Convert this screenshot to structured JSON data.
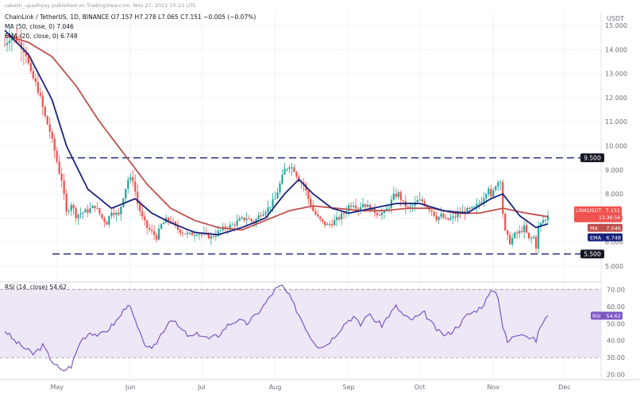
{
  "header": {
    "watermark": "rakesh_upadhyay published on TradingView.com, Nov 27, 2021 10:23 UTC",
    "symbol_line": "ChainLink / TetherUS, 1D, BINANCE  O7.157  H7.278  L7.065  C7.151  −0.005 (−0.07%)",
    "ma_line": "MA (50, close, 0)  7.046",
    "ema_line": "EMA (20, close, 0)  6.748"
  },
  "colors": {
    "up": "#26a69a",
    "down": "#ef5350",
    "ma": "#c0504d",
    "ema": "#1a237e",
    "rsi": "#7e57c2",
    "rsi_band": "#ede7f6",
    "level_line": "#1a237e",
    "grid": "#f0f3fa"
  },
  "price_axis": {
    "unit": "USDT",
    "ticks": [
      "15.000",
      "14.000",
      "13.000",
      "12.000",
      "11.000",
      "10.000",
      "9.000",
      "8.000",
      "7.000",
      "6.000",
      "5.000"
    ],
    "tick_values": [
      15,
      14,
      13,
      12,
      11,
      10,
      9,
      8,
      7,
      6,
      5
    ]
  },
  "price_labels": {
    "resistance": "9.500",
    "support": "5.500",
    "symbol": "LINKUSDT",
    "symbol_value": "7.151",
    "countdown": "13:36:54",
    "ma_tag": "MA",
    "ma_value": "7.046",
    "ema_tag": "EMA",
    "ema_value": "6.748"
  },
  "rsi_panel": {
    "title": "RSI (14, close)  54.62",
    "ticks": [
      "70.00",
      "60.00",
      "50.00",
      "40.00",
      "30.00",
      "20.00"
    ],
    "tick_values": [
      70,
      60,
      50,
      40,
      30,
      20
    ],
    "tag": "RSI",
    "value_label": "54.62"
  },
  "x_axis": {
    "labels": [
      "May",
      "Jun",
      "Jul",
      "Aug",
      "Sep",
      "Oct",
      "Nov",
      "Dec"
    ]
  },
  "chart_data": {
    "type": "candlestick",
    "title": "ChainLink / TetherUS, 1D, BINANCE",
    "ylabel": "USDT",
    "ylim": [
      4.5,
      15.6
    ],
    "levels": [
      9.5,
      5.5
    ],
    "months": [
      {
        "label": "May",
        "day": 22
      },
      {
        "label": "Jun",
        "day": 53
      },
      {
        "label": "Jul",
        "day": 83
      },
      {
        "label": "Aug",
        "day": 114
      },
      {
        "label": "Sep",
        "day": 145
      },
      {
        "label": "Oct",
        "day": 175
      },
      {
        "label": "Nov",
        "day": 206
      },
      {
        "label": "Dec",
        "day": 236
      }
    ],
    "close_anchors": [
      [
        0,
        14.2
      ],
      [
        3,
        14.6
      ],
      [
        6,
        14.3
      ],
      [
        9,
        13.8
      ],
      [
        11,
        13.0
      ],
      [
        13,
        12.6
      ],
      [
        15,
        12.0
      ],
      [
        17,
        11.2
      ],
      [
        19,
        10.6
      ],
      [
        21,
        9.8
      ],
      [
        23,
        8.9
      ],
      [
        24,
        8.6
      ],
      [
        26,
        7.2
      ],
      [
        28,
        7.6
      ],
      [
        30,
        7.1
      ],
      [
        32,
        7.2
      ],
      [
        35,
        7.3
      ],
      [
        38,
        7.5
      ],
      [
        41,
        7.0
      ],
      [
        43,
        6.8
      ],
      [
        45,
        7.3
      ],
      [
        48,
        7.1
      ],
      [
        50,
        7.9
      ],
      [
        52,
        8.6
      ],
      [
        54,
        8.6
      ],
      [
        56,
        7.6
      ],
      [
        58,
        7.0
      ],
      [
        60,
        6.6
      ],
      [
        62,
        6.4
      ],
      [
        64,
        6.2
      ],
      [
        66,
        6.7
      ],
      [
        68,
        6.9
      ],
      [
        70,
        6.9
      ],
      [
        72,
        6.6
      ],
      [
        75,
        6.4
      ],
      [
        78,
        6.3
      ],
      [
        81,
        6.4
      ],
      [
        84,
        6.3
      ],
      [
        87,
        6.2
      ],
      [
        90,
        6.4
      ],
      [
        93,
        6.6
      ],
      [
        96,
        6.7
      ],
      [
        99,
        6.9
      ],
      [
        102,
        7.0
      ],
      [
        105,
        6.8
      ],
      [
        108,
        7.2
      ],
      [
        111,
        7.4
      ],
      [
        114,
        7.8
      ],
      [
        116,
        8.4
      ],
      [
        118,
        9.0
      ],
      [
        120,
        9.2
      ],
      [
        122,
        9.0
      ],
      [
        124,
        8.6
      ],
      [
        126,
        8.4
      ],
      [
        128,
        7.8
      ],
      [
        130,
        7.3
      ],
      [
        132,
        7.0
      ],
      [
        134,
        6.8
      ],
      [
        136,
        6.7
      ],
      [
        138,
        6.8
      ],
      [
        141,
        7.0
      ],
      [
        143,
        7.2
      ],
      [
        145,
        7.5
      ],
      [
        147,
        7.6
      ],
      [
        149,
        7.4
      ],
      [
        151,
        7.6
      ],
      [
        154,
        7.4
      ],
      [
        157,
        7.2
      ],
      [
        160,
        7.2
      ],
      [
        162,
        7.5
      ],
      [
        164,
        7.9
      ],
      [
        166,
        8.0
      ],
      [
        168,
        7.6
      ],
      [
        170,
        7.4
      ],
      [
        172,
        7.5
      ],
      [
        174,
        7.7
      ],
      [
        176,
        7.7
      ],
      [
        178,
        7.5
      ],
      [
        180,
        7.3
      ],
      [
        182,
        7.0
      ],
      [
        184,
        7.1
      ],
      [
        186,
        6.9
      ],
      [
        189,
        7.0
      ],
      [
        192,
        7.2
      ],
      [
        195,
        7.3
      ],
      [
        198,
        7.4
      ],
      [
        200,
        7.6
      ],
      [
        202,
        7.9
      ],
      [
        204,
        8.3
      ],
      [
        205,
        7.8
      ],
      [
        207,
        8.4
      ],
      [
        209,
        8.6
      ],
      [
        210,
        7.2
      ],
      [
        211,
        6.4
      ],
      [
        213,
        6.0
      ],
      [
        215,
        6.3
      ],
      [
        217,
        6.4
      ],
      [
        219,
        6.6
      ],
      [
        221,
        6.1
      ],
      [
        223,
        6.2
      ],
      [
        224,
        5.8
      ],
      [
        225,
        6.6
      ],
      [
        227,
        6.9
      ],
      [
        228,
        6.9
      ],
      [
        229,
        7.15
      ]
    ],
    "ma50_anchors": [
      [
        0,
        14.6
      ],
      [
        10,
        14.3
      ],
      [
        20,
        13.7
      ],
      [
        30,
        12.5
      ],
      [
        40,
        11.0
      ],
      [
        50,
        9.7
      ],
      [
        60,
        8.4
      ],
      [
        70,
        7.4
      ],
      [
        80,
        6.9
      ],
      [
        90,
        6.6
      ],
      [
        100,
        6.5
      ],
      [
        110,
        6.9
      ],
      [
        120,
        7.3
      ],
      [
        130,
        7.5
      ],
      [
        140,
        7.4
      ],
      [
        150,
        7.3
      ],
      [
        160,
        7.3
      ],
      [
        170,
        7.4
      ],
      [
        180,
        7.4
      ],
      [
        190,
        7.2
      ],
      [
        200,
        7.2
      ],
      [
        205,
        7.3
      ],
      [
        210,
        7.4
      ],
      [
        220,
        7.2
      ],
      [
        229,
        7.05
      ]
    ],
    "ema20_anchors": [
      [
        0,
        14.8
      ],
      [
        10,
        13.8
      ],
      [
        20,
        11.9
      ],
      [
        26,
        10.0
      ],
      [
        35,
        8.2
      ],
      [
        45,
        7.4
      ],
      [
        55,
        7.8
      ],
      [
        62,
        7.2
      ],
      [
        70,
        6.8
      ],
      [
        80,
        6.4
      ],
      [
        90,
        6.3
      ],
      [
        100,
        6.6
      ],
      [
        110,
        7.0
      ],
      [
        118,
        8.0
      ],
      [
        124,
        8.6
      ],
      [
        130,
        8.0
      ],
      [
        138,
        7.4
      ],
      [
        145,
        7.2
      ],
      [
        155,
        7.4
      ],
      [
        165,
        7.6
      ],
      [
        175,
        7.6
      ],
      [
        185,
        7.3
      ],
      [
        195,
        7.2
      ],
      [
        205,
        7.8
      ],
      [
        210,
        8.0
      ],
      [
        217,
        7.1
      ],
      [
        224,
        6.6
      ],
      [
        229,
        6.75
      ]
    ],
    "rsi_anchors": [
      [
        0,
        46
      ],
      [
        4,
        40
      ],
      [
        8,
        36
      ],
      [
        12,
        32
      ],
      [
        16,
        37
      ],
      [
        20,
        28
      ],
      [
        24,
        22
      ],
      [
        28,
        25
      ],
      [
        32,
        40
      ],
      [
        36,
        45
      ],
      [
        40,
        43
      ],
      [
        44,
        47
      ],
      [
        48,
        53
      ],
      [
        52,
        62
      ],
      [
        54,
        55
      ],
      [
        58,
        40
      ],
      [
        62,
        34
      ],
      [
        66,
        44
      ],
      [
        70,
        53
      ],
      [
        74,
        47
      ],
      [
        78,
        42
      ],
      [
        82,
        44
      ],
      [
        86,
        41
      ],
      [
        90,
        43
      ],
      [
        94,
        49
      ],
      [
        98,
        52
      ],
      [
        102,
        50
      ],
      [
        106,
        55
      ],
      [
        110,
        62
      ],
      [
        114,
        70
      ],
      [
        117,
        72
      ],
      [
        120,
        66
      ],
      [
        123,
        58
      ],
      [
        126,
        50
      ],
      [
        129,
        42
      ],
      [
        132,
        37
      ],
      [
        135,
        37
      ],
      [
        138,
        41
      ],
      [
        141,
        46
      ],
      [
        144,
        51
      ],
      [
        147,
        54
      ],
      [
        150,
        49
      ],
      [
        153,
        56
      ],
      [
        156,
        52
      ],
      [
        159,
        49
      ],
      [
        162,
        55
      ],
      [
        165,
        60
      ],
      [
        168,
        55
      ],
      [
        171,
        52
      ],
      [
        174,
        54
      ],
      [
        177,
        56
      ],
      [
        180,
        50
      ],
      [
        183,
        45
      ],
      [
        186,
        43
      ],
      [
        189,
        46
      ],
      [
        192,
        50
      ],
      [
        195,
        55
      ],
      [
        198,
        57
      ],
      [
        201,
        60
      ],
      [
        204,
        66
      ],
      [
        206,
        70
      ],
      [
        208,
        66
      ],
      [
        210,
        48
      ],
      [
        212,
        39
      ],
      [
        215,
        43
      ],
      [
        218,
        45
      ],
      [
        221,
        42
      ],
      [
        224,
        40
      ],
      [
        226,
        49
      ],
      [
        228,
        53
      ],
      [
        229,
        54.62
      ]
    ],
    "rsi_ylim": [
      18,
      72
    ],
    "rsi_band": [
      30,
      70
    ]
  }
}
